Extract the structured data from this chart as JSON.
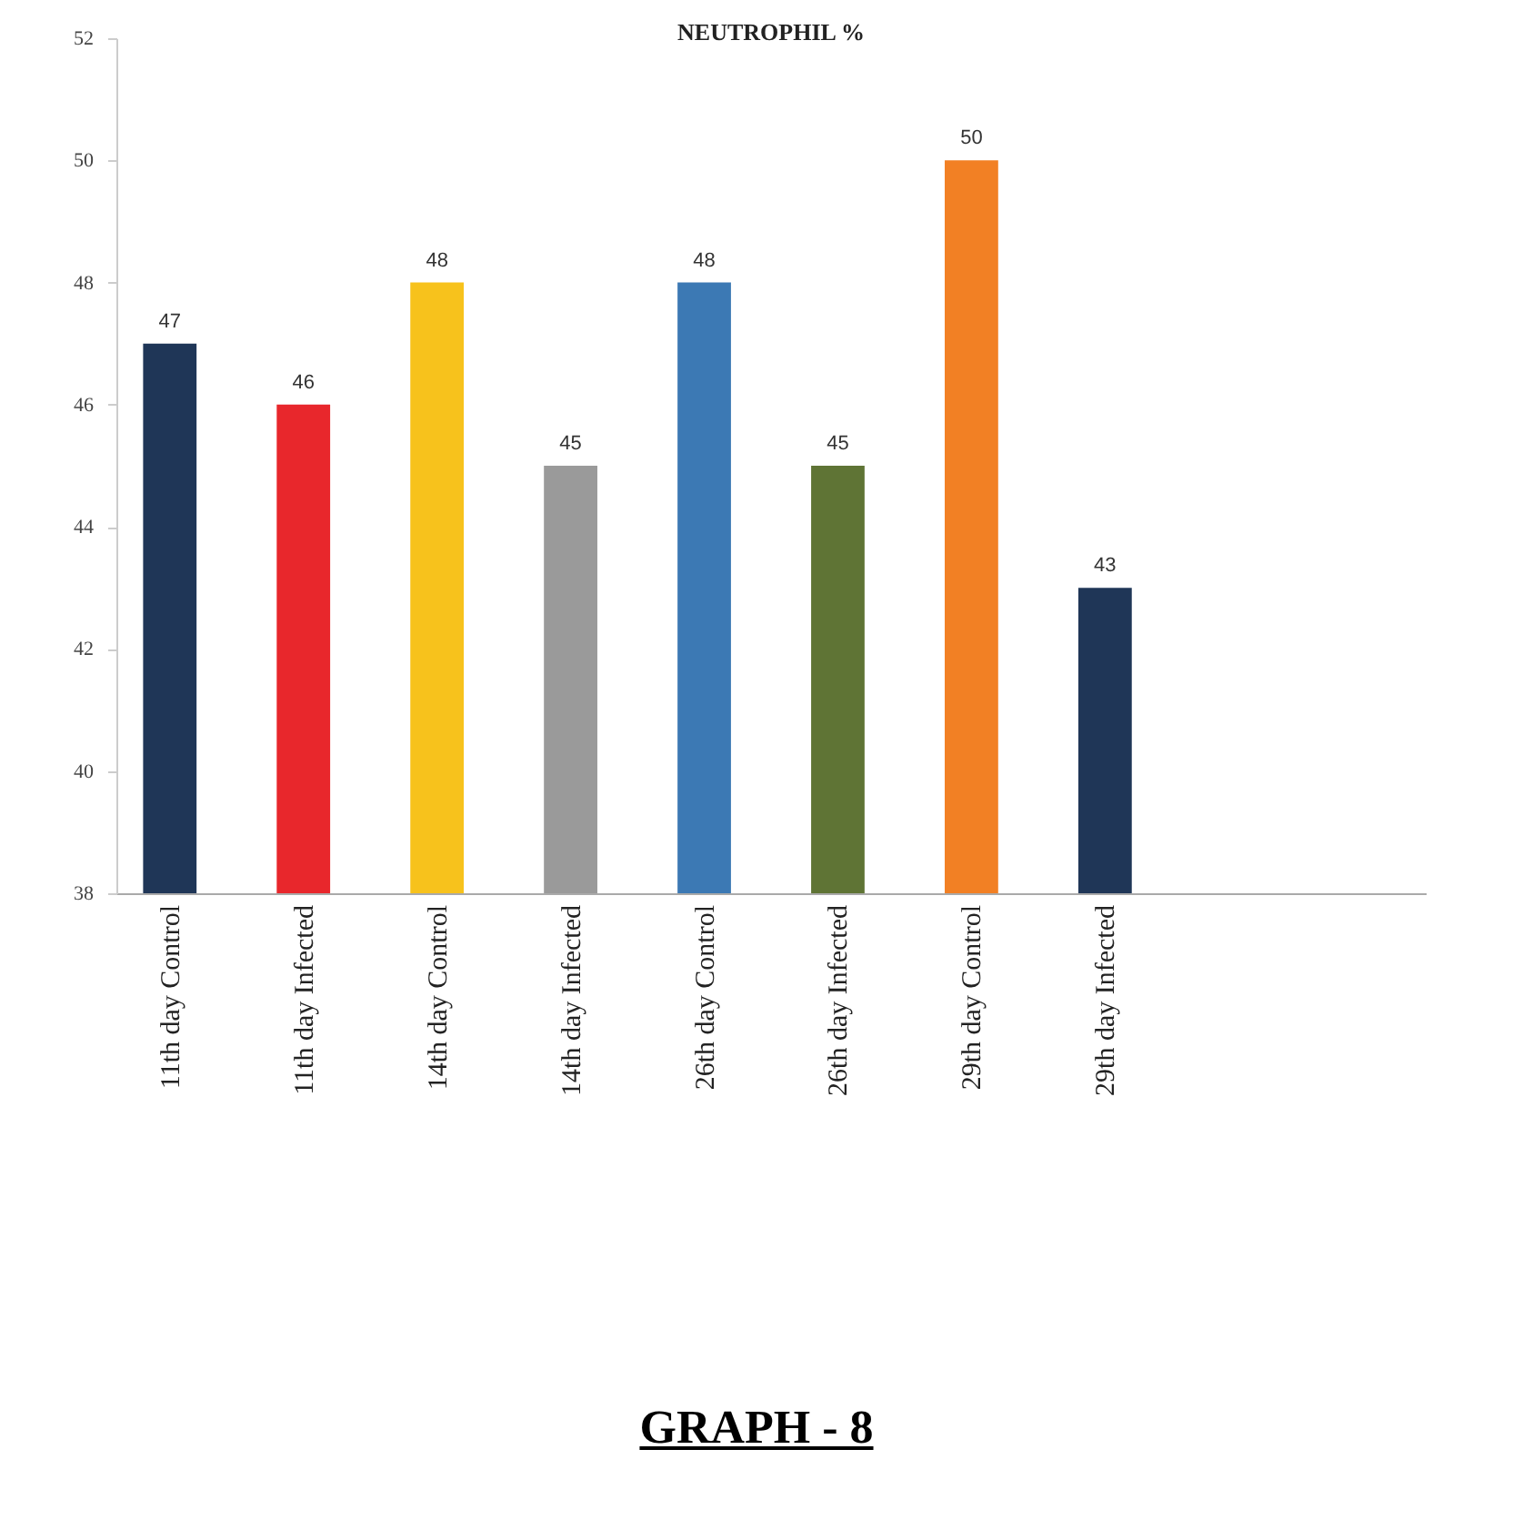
{
  "chart_data": {
    "type": "bar",
    "title": "NEUTROPHIL %",
    "categories": [
      "11th day Control",
      "11th day Infected",
      "14th day Control",
      "14th day Infected",
      "26th day Control",
      "26th day Infected",
      "29th day Control",
      "29th day Infected",
      null,
      null
    ],
    "values": [
      47,
      46,
      48,
      45,
      48,
      45,
      50,
      43,
      null,
      null
    ],
    "colors": [
      "#1f3657",
      "#e8272c",
      "#f7c21c",
      "#9a9a9a",
      "#3c79b4",
      "#5f7435",
      "#f28024",
      "#1f3657",
      "#1f3657",
      "#1f3657"
    ],
    "ylim": [
      38,
      52
    ],
    "yticks": [
      38,
      40,
      42,
      44,
      46,
      48,
      50,
      52
    ],
    "grid": false,
    "data_labels": true,
    "annotations": [
      "GRAPH - 8"
    ]
  }
}
